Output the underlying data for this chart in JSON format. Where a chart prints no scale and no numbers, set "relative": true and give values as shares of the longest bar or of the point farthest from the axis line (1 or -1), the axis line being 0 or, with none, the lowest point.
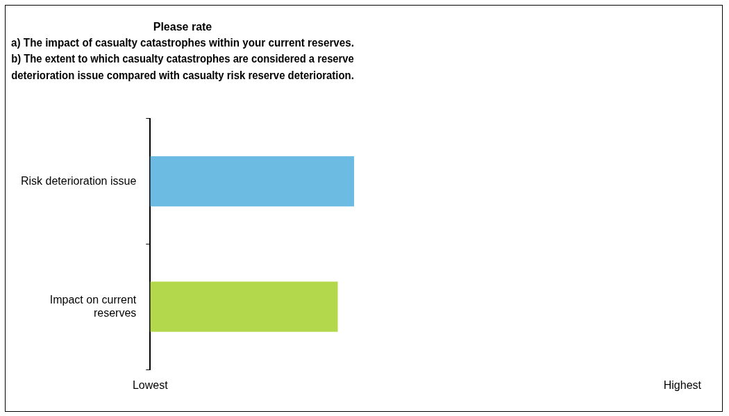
{
  "chart_data": {
    "type": "bar",
    "orientation": "horizontal",
    "relative": true,
    "title": "Please rate\na) The impact of casualty catastrophes within your current reserves.\nb) The extent to which casualty catastrophes are considered a reserve\ndeterioration issue compared with casualty risk reserve deterioration.",
    "categories": [
      "Risk deterioration issue",
      "Impact on current reserves"
    ],
    "values": [
      1,
      0.92
    ],
    "colors": [
      "#6bbbe2",
      "#b4d84c"
    ],
    "annotations": [
      "Lowest",
      "Highest"
    ],
    "grid": false,
    "legend": false
  }
}
